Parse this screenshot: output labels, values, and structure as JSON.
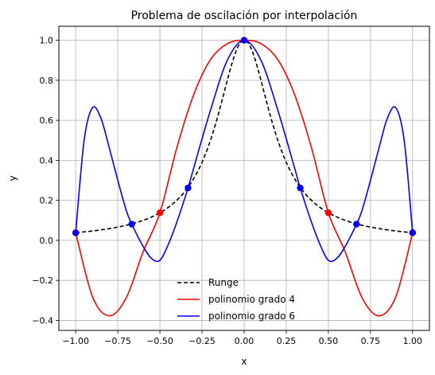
{
  "chart_data": {
    "type": "line",
    "title": "Problema de oscilación por interpolación",
    "xlabel": "x",
    "ylabel": "y",
    "xlim": [
      -1.1,
      1.1
    ],
    "ylim": [
      -0.45,
      1.07
    ],
    "xticks": [
      -1.0,
      -0.75,
      -0.5,
      -0.25,
      0.0,
      0.25,
      0.5,
      0.75,
      1.0
    ],
    "xtick_labels": [
      "−1.00",
      "−0.75",
      "−0.50",
      "−0.25",
      "0.00",
      "0.25",
      "0.50",
      "0.75",
      "1.00"
    ],
    "yticks": [
      -0.4,
      -0.2,
      0.0,
      0.2,
      0.4,
      0.6,
      0.8,
      1.0
    ],
    "ytick_labels": [
      "−0.4",
      "−0.2",
      "0.0",
      "0.2",
      "0.4",
      "0.6",
      "0.8",
      "1.0"
    ],
    "grid": true,
    "legend_position": "lower center",
    "series": [
      {
        "name": "Runge",
        "color": "#000000",
        "style": "dashed",
        "function": "1/(1+25x^2)",
        "x": [
          -1.0,
          -0.9,
          -0.8,
          -0.7,
          -0.6,
          -0.5,
          -0.4,
          -0.3,
          -0.2,
          -0.1,
          0.0,
          0.1,
          0.2,
          0.3,
          0.4,
          0.5,
          0.6,
          0.7,
          0.8,
          0.9,
          1.0
        ],
        "y": [
          0.038,
          0.047,
          0.059,
          0.075,
          0.1,
          0.138,
          0.2,
          0.308,
          0.5,
          0.8,
          1.0,
          0.8,
          0.5,
          0.308,
          0.2,
          0.138,
          0.1,
          0.075,
          0.059,
          0.047,
          0.038
        ]
      },
      {
        "name": "polinomio grado 4",
        "color": "#ff0000",
        "style": "solid",
        "x": [
          -1.0,
          -0.9,
          -0.8,
          -0.7,
          -0.6,
          -0.5,
          -0.4,
          -0.3,
          -0.2,
          -0.1,
          0.0,
          0.1,
          0.2,
          0.3,
          0.4,
          0.5,
          0.6,
          0.7,
          0.8,
          0.9,
          1.0
        ],
        "y": [
          0.038,
          -0.282,
          -0.377,
          -0.287,
          -0.058,
          0.138,
          0.462,
          0.727,
          0.903,
          0.983,
          1.0,
          0.983,
          0.903,
          0.727,
          0.462,
          0.138,
          -0.058,
          -0.287,
          -0.377,
          -0.282,
          0.038
        ],
        "nodes_x": [
          -1.0,
          -0.5,
          0.0,
          0.5,
          1.0
        ],
        "nodes_y": [
          0.038,
          0.138,
          1.0,
          0.138,
          0.038
        ]
      },
      {
        "name": "polinomio grado 6",
        "color": "#0000ff",
        "style": "solid",
        "x": [
          -1.0,
          -0.95,
          -0.9,
          -0.85,
          -0.8,
          -0.75,
          -0.7,
          -0.667,
          -0.6,
          -0.55,
          -0.5,
          -0.45,
          -0.4,
          -0.333,
          -0.3,
          -0.2,
          -0.1,
          0.0,
          0.1,
          0.2,
          0.3,
          0.333,
          0.4,
          0.45,
          0.5,
          0.55,
          0.6,
          0.667,
          0.7,
          0.75,
          0.8,
          0.85,
          0.9,
          0.95,
          1.0
        ],
        "y": [
          0.038,
          0.5,
          0.663,
          0.61,
          0.46,
          0.3,
          0.15,
          0.081,
          -0.03,
          -0.09,
          -0.1,
          -0.02,
          0.09,
          0.262,
          0.36,
          0.65,
          0.9,
          1.0,
          0.9,
          0.65,
          0.36,
          0.262,
          0.09,
          -0.02,
          -0.1,
          -0.09,
          -0.03,
          0.081,
          0.15,
          0.3,
          0.46,
          0.61,
          0.663,
          0.5,
          0.038
        ],
        "nodes_x": [
          -1.0,
          -0.667,
          -0.333,
          0.0,
          0.333,
          0.667,
          1.0
        ],
        "nodes_y": [
          0.038,
          0.081,
          0.262,
          1.0,
          0.262,
          0.081,
          0.038
        ]
      }
    ]
  }
}
